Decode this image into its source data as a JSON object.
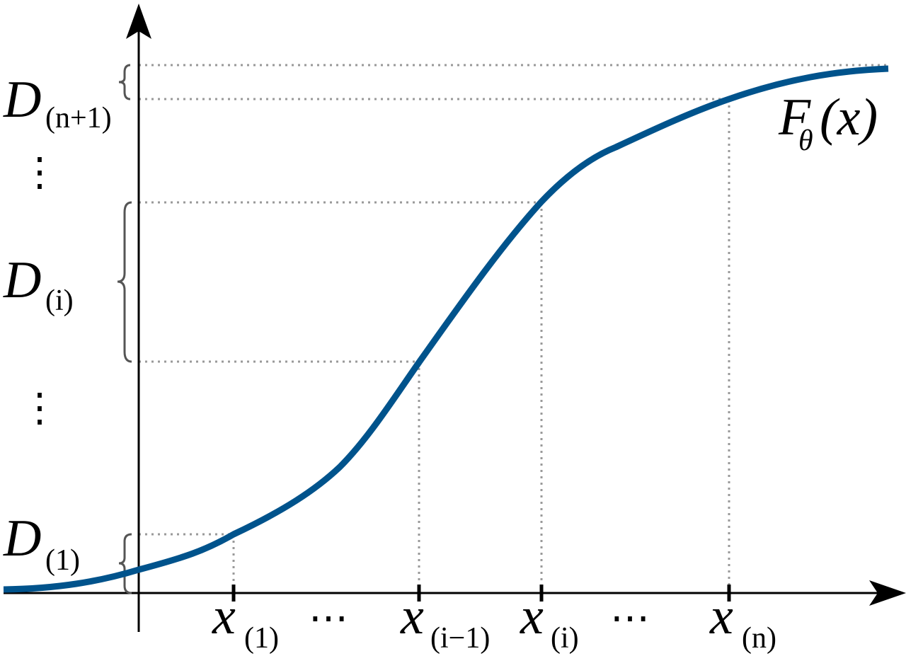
{
  "y_labels": [
    {
      "main": "D",
      "sub": "(n+1)"
    },
    {
      "main": "D",
      "sub": "(i)"
    },
    {
      "main": "D",
      "sub": "(1)"
    }
  ],
  "vertical_ellipses": [
    "⋮",
    "⋮"
  ],
  "x_labels": [
    {
      "main": "x",
      "sub": "(1)"
    },
    {
      "main": "x",
      "sub": "(i−1)"
    },
    {
      "main": "x",
      "sub": "(i)"
    },
    {
      "main": "x",
      "sub": "(n)"
    }
  ],
  "horizontal_ellipses": [
    "⋯",
    "⋯"
  ],
  "curve_label": {
    "main": "F",
    "sub": "θ",
    "arg": "(x)"
  }
}
